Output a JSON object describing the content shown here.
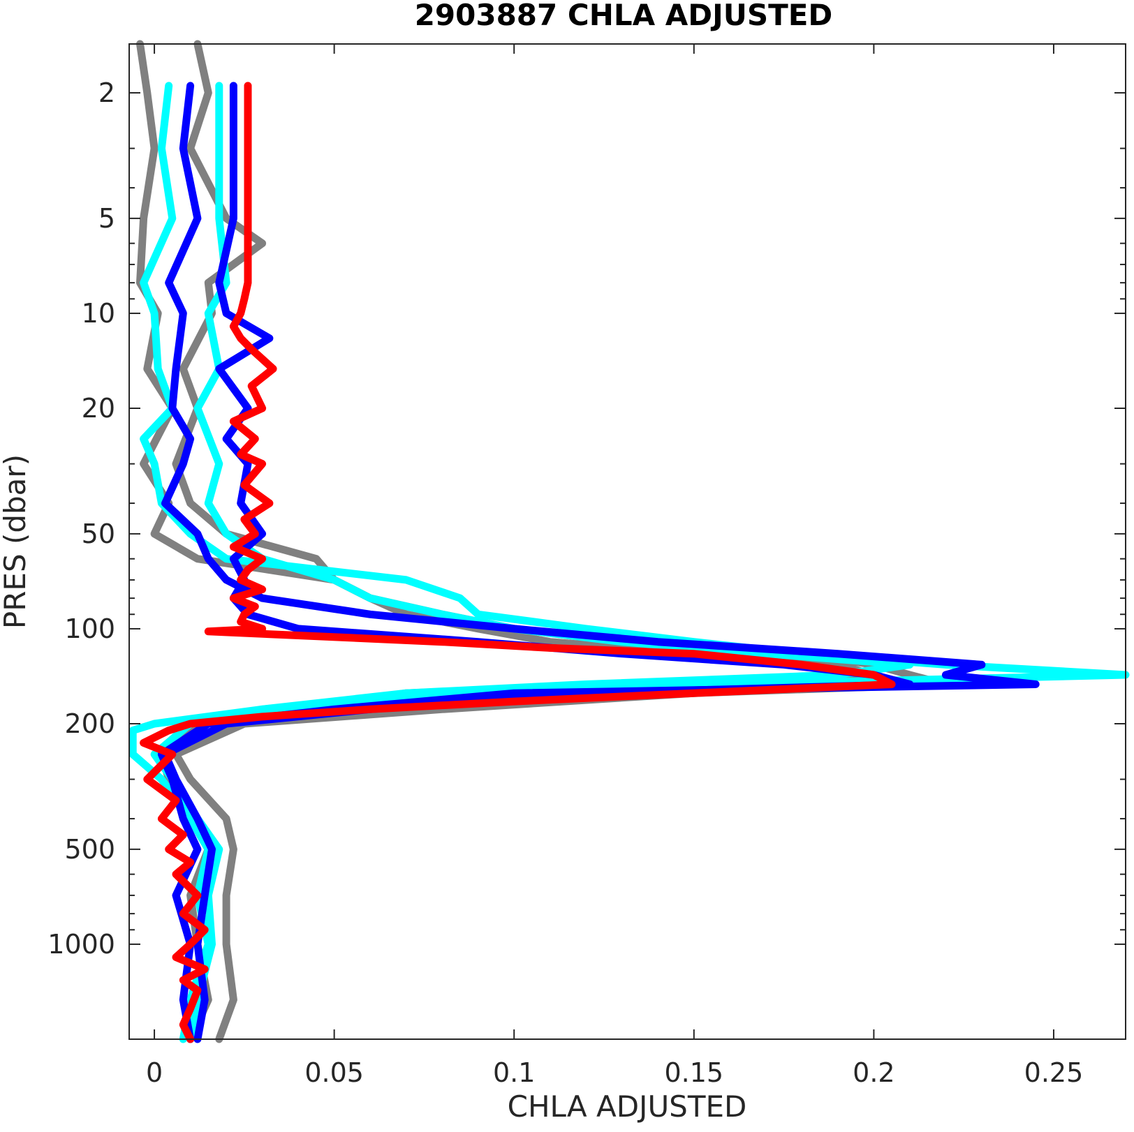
{
  "chart_data": {
    "type": "line",
    "title": "2903887  CHLA ADJUSTED",
    "xlabel": "CHLA ADJUSTED",
    "ylabel": "PRES (dbar)",
    "xlim": [
      -0.007,
      0.27
    ],
    "ylim": [
      1.4,
      2000
    ],
    "y_scale": "log",
    "y_reversed": true,
    "grid": false,
    "x_ticks": [
      0,
      0.05,
      0.1,
      0.15,
      0.2,
      0.25
    ],
    "x_tick_labels": [
      "0",
      "0.05",
      "0.1",
      "0.15",
      "0.2",
      "0.25"
    ],
    "y_ticks": [
      2,
      5,
      10,
      20,
      50,
      100,
      200,
      500,
      1000
    ],
    "y_tick_labels": [
      "2",
      "5",
      "10",
      "20",
      "50",
      "100",
      "200",
      "500",
      "1000"
    ],
    "colors": {
      "older": "#808080",
      "recent": "#00ffff",
      "previous": "#0000ff",
      "latest": "#ff0000",
      "axis": "#262626"
    },
    "series": [
      {
        "color": "older",
        "pres": [
          1.4,
          2,
          3,
          5,
          8,
          10,
          15,
          20,
          30,
          40,
          50,
          60,
          70,
          80,
          90,
          100,
          110,
          120,
          130,
          140,
          150,
          160,
          180,
          200,
          250,
          300,
          400,
          500,
          700,
          1000,
          1500,
          2000
        ],
        "chla": [
          -0.004,
          -0.002,
          0.0,
          -0.003,
          -0.004,
          0.001,
          -0.002,
          0.005,
          -0.003,
          0.004,
          0.0,
          0.012,
          0.05,
          0.06,
          0.07,
          0.09,
          0.11,
          0.15,
          0.19,
          0.2,
          0.13,
          0.07,
          0.04,
          0.012,
          0.002,
          0.004,
          0.01,
          0.015,
          0.01,
          0.012,
          0.015,
          0.01
        ]
      },
      {
        "color": "older",
        "pres": [
          1.4,
          2,
          3,
          5,
          6,
          8,
          10,
          15,
          20,
          30,
          40,
          50,
          60,
          70,
          80,
          90,
          100,
          110,
          120,
          130,
          140,
          150,
          160,
          180,
          200,
          250,
          300,
          400,
          500,
          700,
          1000,
          1500,
          2000
        ],
        "chla": [
          0.012,
          0.015,
          0.01,
          0.02,
          0.03,
          0.015,
          0.016,
          0.008,
          0.012,
          0.006,
          0.01,
          0.02,
          0.045,
          0.05,
          0.06,
          0.08,
          0.1,
          0.13,
          0.18,
          0.2,
          0.21,
          0.22,
          0.15,
          0.08,
          0.025,
          0.006,
          0.01,
          0.02,
          0.022,
          0.02,
          0.02,
          0.022,
          0.018
        ]
      },
      {
        "color": "recent",
        "pres": [
          1.9,
          3,
          5,
          8,
          10,
          15,
          20,
          25,
          30,
          40,
          50,
          60,
          70,
          80,
          90,
          100,
          110,
          120,
          130,
          140,
          150,
          160,
          180,
          200,
          210,
          250,
          300,
          400,
          500,
          700,
          1000,
          1500,
          2000
        ],
        "chla": [
          0.004,
          0.002,
          0.005,
          -0.003,
          0.0,
          0.001,
          0.005,
          -0.003,
          0.0,
          0.002,
          0.01,
          0.02,
          0.07,
          0.085,
          0.09,
          0.12,
          0.15,
          0.18,
          0.22,
          0.27,
          0.16,
          0.08,
          0.03,
          0.0,
          -0.006,
          -0.006,
          0.002,
          0.01,
          0.015,
          0.012,
          0.015,
          0.01,
          0.008
        ]
      },
      {
        "color": "recent",
        "pres": [
          1.9,
          3,
          5,
          8,
          10,
          15,
          20,
          30,
          40,
          50,
          60,
          70,
          80,
          90,
          100,
          110,
          120,
          130,
          140,
          150,
          160,
          180,
          200,
          250,
          300,
          400,
          500,
          700,
          1000,
          1500,
          2000
        ],
        "chla": [
          0.018,
          0.018,
          0.018,
          0.02,
          0.015,
          0.018,
          0.012,
          0.018,
          0.015,
          0.02,
          0.03,
          0.05,
          0.06,
          0.08,
          0.1,
          0.13,
          0.17,
          0.21,
          0.19,
          0.12,
          0.07,
          0.03,
          0.01,
          0.0,
          0.005,
          0.012,
          0.018,
          0.015,
          0.016,
          0.012,
          0.01
        ]
      },
      {
        "color": "previous",
        "pres": [
          1.9,
          3,
          5,
          8,
          10,
          15,
          20,
          25,
          30,
          40,
          50,
          60,
          70,
          80,
          90,
          100,
          110,
          120,
          130,
          140,
          150,
          160,
          180,
          200,
          250,
          300,
          400,
          500,
          700,
          1000,
          1500,
          2000
        ],
        "chla": [
          0.01,
          0.008,
          0.012,
          0.004,
          0.008,
          0.006,
          0.005,
          0.01,
          0.008,
          0.003,
          0.012,
          0.015,
          0.02,
          0.03,
          0.06,
          0.1,
          0.14,
          0.19,
          0.23,
          0.22,
          0.245,
          0.1,
          0.05,
          0.015,
          0.002,
          0.005,
          0.008,
          0.012,
          0.006,
          0.01,
          0.008,
          0.01
        ]
      },
      {
        "color": "previous",
        "pres": [
          1.9,
          3,
          5,
          8,
          10,
          12,
          15,
          20,
          25,
          30,
          40,
          50,
          60,
          70,
          80,
          90,
          100,
          110,
          120,
          130,
          140,
          150,
          160,
          180,
          200,
          250,
          300,
          400,
          500,
          700,
          1000,
          1500,
          2000
        ],
        "chla": [
          0.022,
          0.022,
          0.022,
          0.018,
          0.02,
          0.032,
          0.018,
          0.026,
          0.02,
          0.026,
          0.024,
          0.03,
          0.022,
          0.025,
          0.022,
          0.026,
          0.04,
          0.09,
          0.13,
          0.175,
          0.2,
          0.21,
          0.12,
          0.06,
          0.02,
          0.003,
          0.006,
          0.012,
          0.016,
          0.014,
          0.012,
          0.014,
          0.012
        ]
      },
      {
        "color": "latest",
        "pres": [
          1.9,
          3,
          5,
          8,
          9,
          10,
          11,
          12,
          13,
          15,
          17,
          20,
          22,
          25,
          28,
          30,
          35,
          40,
          45,
          50,
          55,
          60,
          65,
          70,
          75,
          80,
          85,
          90,
          95,
          100,
          102,
          105,
          110,
          115,
          120,
          130,
          140,
          150,
          160,
          170,
          180,
          190,
          200,
          210,
          230,
          250,
          300,
          350,
          400,
          450,
          500,
          550,
          600,
          700,
          800,
          900,
          1000,
          1100,
          1200,
          1300,
          1400,
          1600,
          1800,
          2000
        ],
        "chla": [
          0.026,
          0.026,
          0.026,
          0.026,
          0.025,
          0.024,
          0.022,
          0.024,
          0.027,
          0.033,
          0.027,
          0.03,
          0.022,
          0.028,
          0.024,
          0.03,
          0.025,
          0.032,
          0.025,
          0.028,
          0.022,
          0.03,
          0.026,
          0.024,
          0.03,
          0.022,
          0.028,
          0.025,
          0.024,
          0.03,
          0.015,
          0.04,
          0.08,
          0.11,
          0.15,
          0.18,
          0.2,
          0.205,
          0.15,
          0.1,
          0.06,
          0.03,
          0.01,
          0.004,
          -0.003,
          0.005,
          -0.002,
          0.006,
          0.002,
          0.008,
          0.004,
          0.01,
          0.006,
          0.012,
          0.008,
          0.014,
          0.01,
          0.006,
          0.014,
          0.008,
          0.012,
          0.01,
          0.008,
          0.01
        ]
      }
    ]
  }
}
